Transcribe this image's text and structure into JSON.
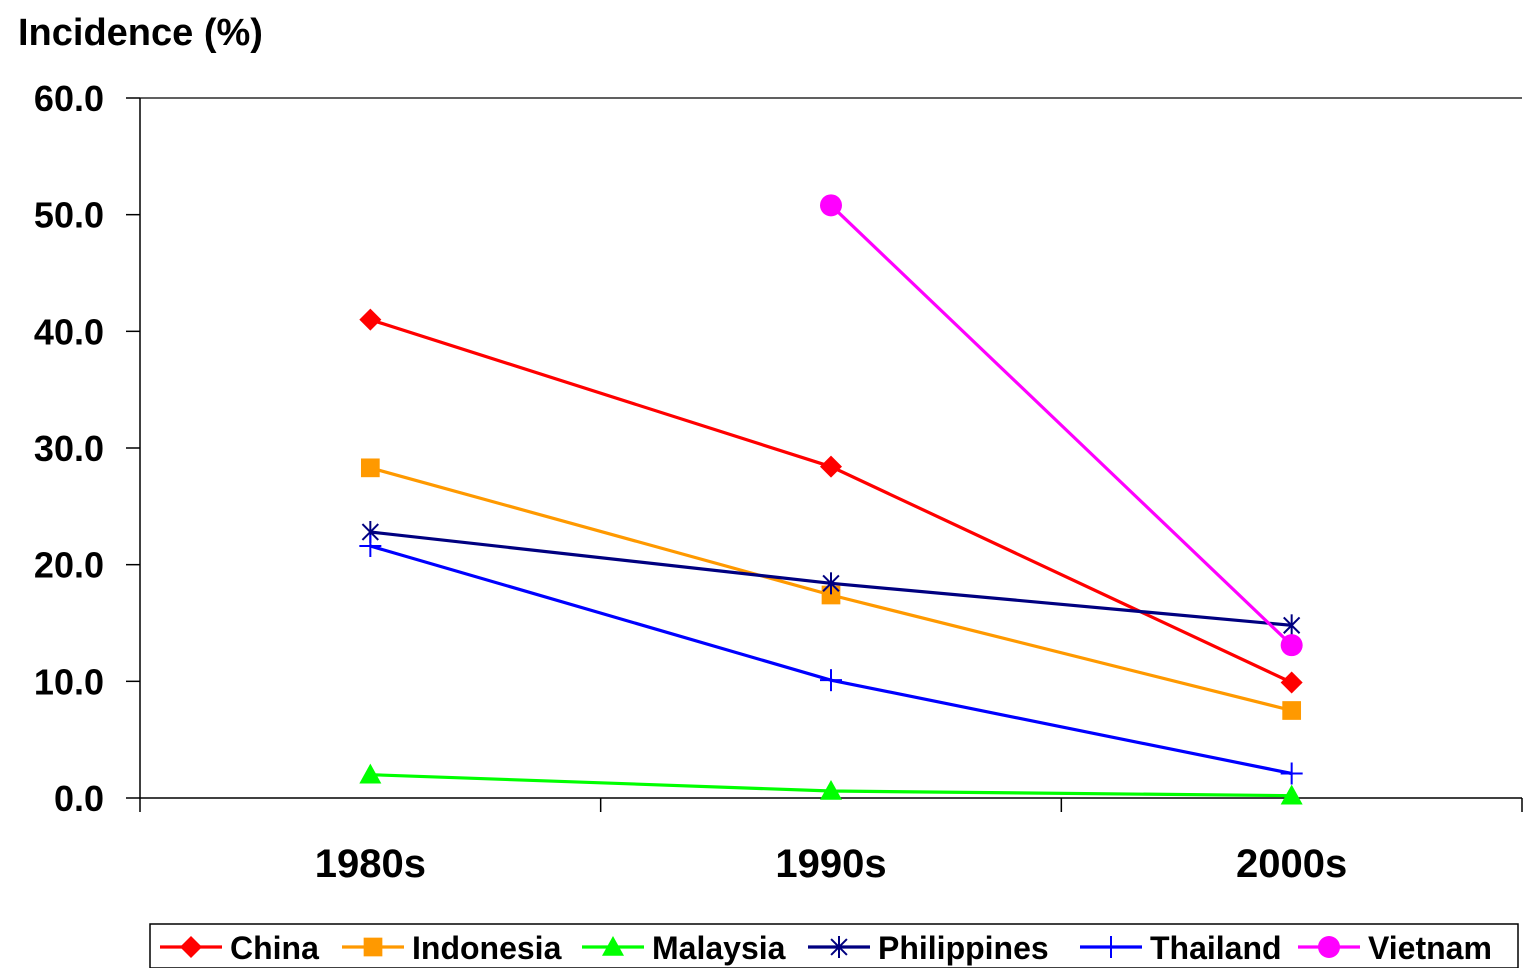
{
  "chart_data": {
    "type": "line",
    "ylabel": "Incidence (%)",
    "categories": [
      "1980s",
      "1990s",
      "2000s"
    ],
    "ylim": [
      0,
      60
    ],
    "yticks": [
      "0.0",
      "10.0",
      "20.0",
      "30.0",
      "40.0",
      "50.0",
      "60.0"
    ],
    "grid": false,
    "legend_position": "bottom",
    "series": [
      {
        "name": "China",
        "values": [
          41.0,
          28.4,
          9.9
        ],
        "color": "#FF0000",
        "marker": "diamond"
      },
      {
        "name": "Indonesia",
        "values": [
          28.3,
          17.4,
          7.5
        ],
        "color": "#FF9900",
        "marker": "square"
      },
      {
        "name": "Malaysia",
        "values": [
          2.0,
          0.6,
          0.2
        ],
        "color": "#00FF00",
        "marker": "triangle"
      },
      {
        "name": "Philippines",
        "values": [
          22.8,
          18.4,
          14.8
        ],
        "color": "#000080",
        "marker": "asterisk"
      },
      {
        "name": "Thailand",
        "values": [
          21.6,
          10.1,
          2.1
        ],
        "color": "#0000FF",
        "marker": "plus"
      },
      {
        "name": "Vietnam",
        "values": [
          null,
          50.8,
          13.1
        ],
        "color": "#FF00FF",
        "marker": "circle"
      }
    ]
  }
}
